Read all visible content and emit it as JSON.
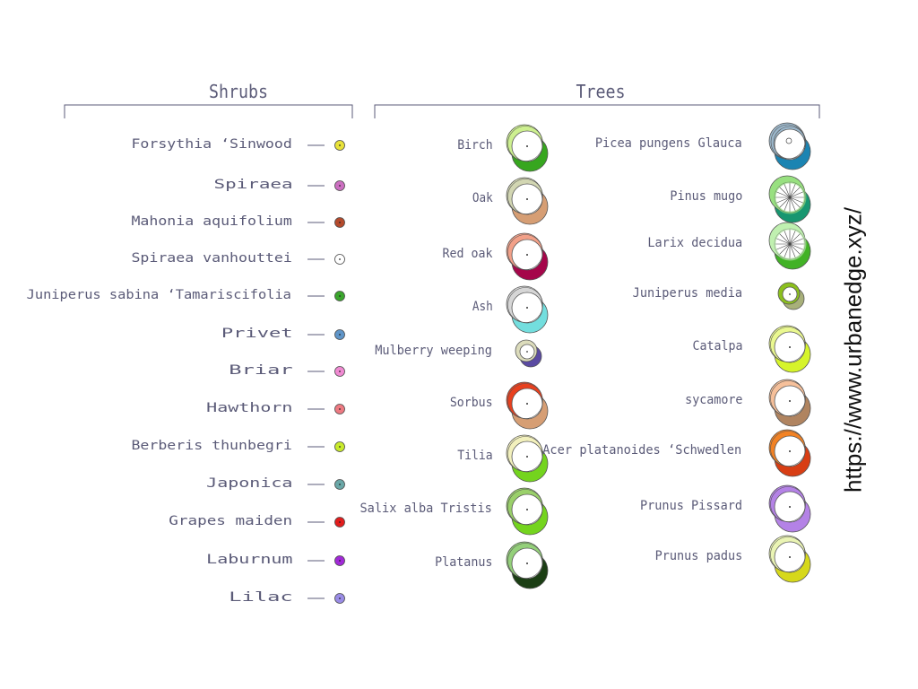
{
  "shrubs": {
    "title": "Shrubs",
    "items": [
      {
        "name": "Forsythia ‘Sinwood",
        "color": "#e8e23a"
      },
      {
        "name": "Spiraea",
        "color": "#cc6fc1"
      },
      {
        "name": "Mahonia aquifolium",
        "color": "#b44a2c"
      },
      {
        "name": "Spiraea vanhouttei",
        "color": "#ffffff"
      },
      {
        "name": "Juniperus sabina ‘Tamariscifolia",
        "color": "#3aa52c"
      },
      {
        "name": "Privet",
        "color": "#5f95c8"
      },
      {
        "name": "Briar",
        "color": "#f08ad2"
      },
      {
        "name": "Hawthorn",
        "color": "#ee7a82"
      },
      {
        "name": "Berberis thunbegri",
        "color": "#c8ea2c"
      },
      {
        "name": "Japonica",
        "color": "#6aa7a7"
      },
      {
        "name": "Grapes maiden",
        "color": "#e21c1c"
      },
      {
        "name": "Laburnum",
        "color": "#a229d8"
      },
      {
        "name": "Lilac",
        "color": "#9a8ce6"
      }
    ]
  },
  "trees": {
    "title": "Trees",
    "left": [
      {
        "name": "Birch",
        "light": "#cdf08f",
        "dark": "#37a61f",
        "style": "plain"
      },
      {
        "name": "Oak",
        "light": "#d2d6b2",
        "dark": "#d69e74",
        "style": "plain"
      },
      {
        "name": "Red oak",
        "light": "#f2a088",
        "dark": "#a5064a",
        "style": "plain"
      },
      {
        "name": "Ash",
        "light": "#d6d6d6",
        "dark": "#73dede",
        "style": "plain"
      },
      {
        "name": "Mulberry weeping",
        "light": "#dcdcbc",
        "dark": "#5a4aa2",
        "style": "small"
      },
      {
        "name": "Sorbus",
        "light": "#e8401e",
        "dark": "#d69e74",
        "style": "plain"
      },
      {
        "name": "Tilia",
        "light": "#f2f0bc",
        "dark": "#74d41e",
        "style": "plain"
      },
      {
        "name": "Salix alba Tristis",
        "light": "#9ad06a",
        "dark": "#74d41e",
        "style": "plain"
      },
      {
        "name": "Platanus",
        "light": "#94d07a",
        "dark": "#1b3e14",
        "style": "plain"
      }
    ],
    "right": [
      {
        "name": "Picea pungens Glauca",
        "light": "#9cb8cc",
        "dark": "#1b84b2",
        "style": "rings"
      },
      {
        "name": "Pinus mugo",
        "light": "#98e080",
        "dark": "#189670",
        "style": "spokes"
      },
      {
        "name": "Larix decidua",
        "light": "#c0f0b0",
        "dark": "#42b226",
        "style": "spokes"
      },
      {
        "name": "Juniperus media",
        "light": "#8cc01e",
        "dark": "#a8b07a",
        "style": "small"
      },
      {
        "name": "Catalpa",
        "light": "#eaf890",
        "dark": "#d6f42a",
        "style": "plain"
      },
      {
        "name": "sycamore",
        "light": "#f6c09a",
        "dark": "#b08460",
        "style": "plain"
      },
      {
        "name": "Acer platanoides ‘Schwedlen",
        "light": "#f28224",
        "dark": "#d83e14",
        "style": "plain"
      },
      {
        "name": "Prunus Pissard",
        "light": "#b482e6",
        "dark": "#b482e6",
        "style": "plain"
      },
      {
        "name": "Prunus padus",
        "light": "#eaf4b4",
        "dark": "#d6d81a",
        "style": "plain"
      }
    ]
  },
  "watermark": "https://www.urbanedge.xyz/"
}
